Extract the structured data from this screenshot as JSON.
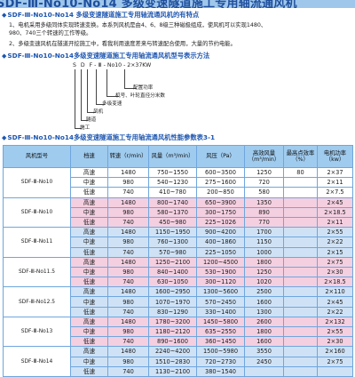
{
  "banner": "SDF-Ⅲ-No10-No14 多级变速隧道施工专用轴流通风机",
  "features": {
    "title": "SDF-Ⅲ-No10-No14 多级变速隧道施工专用轴流通风机的有特点",
    "p1_line1": "1、电机采用多级同体实现转速变换。本系列风机是由4、6、8级三种磁极组成，使风机可以实现1480、",
    "p1_line2": "980、740三个转速的工作等级。",
    "p2_line1": "2、多级变速风机在隧道开挖施工中，看我利用速度差来与转速配合使用，大量的节约电能。"
  },
  "model_code": {
    "title": "SDF-Ⅲ-No10-No14多级变速隧道施工专用轴流通风机型号表示方法",
    "parts": [
      "S",
      "D",
      "F",
      "-",
      "Ⅲ",
      "-",
      "No10",
      "-",
      "2×37KW"
    ],
    "labels": [
      "配置功率",
      "机号、叶轮直径分米数",
      "多级变速",
      "风机",
      "隧道",
      "施工"
    ]
  },
  "table": {
    "title": "SDF-Ⅲ-No10-No14多级变速隧道施工专用轴流通风机性能参数表3-1",
    "headers": {
      "model": "风机型号",
      "gear": "档速",
      "speed": "转速（r/min）",
      "flow": "风量（m³/min）",
      "pressure": "风压（Pa）",
      "eff_flow": "高效风量（m³/min）",
      "max_eff": "最高点效率（%）",
      "power": "电机功率（kw）"
    },
    "groups": [
      {
        "model": "SDF-Ⅲ-No10",
        "tone": "w",
        "rows": [
          [
            "高速",
            "1480",
            "750~1550",
            "600~3500",
            "1250",
            "80",
            "2×37"
          ],
          [
            "中速",
            "980",
            "540~1230",
            "275~1600",
            "720",
            "",
            "2×11"
          ],
          [
            "低速",
            "740",
            "410~780",
            "200~850",
            "580",
            "",
            "2×7.5"
          ]
        ]
      },
      {
        "model": "SDF-Ⅲ-No10",
        "tone": "p",
        "rows": [
          [
            "高速",
            "1480",
            "800~1740",
            "650~3900",
            "1350",
            "",
            "2×45"
          ],
          [
            "中速",
            "980",
            "580~1370",
            "300~1750",
            "890",
            "",
            "2×18.5"
          ],
          [
            "低速",
            "740",
            "450~980",
            "225~1026",
            "770",
            "",
            "2×11"
          ]
        ]
      },
      {
        "model": "SDF-Ⅲ-No11",
        "tone": "b",
        "rows": [
          [
            "高速",
            "1480",
            "1150~1950",
            "900~4200",
            "1700",
            "",
            "2×55"
          ],
          [
            "中速",
            "980",
            "760~1300",
            "400~1860",
            "1150",
            "",
            "2×22"
          ],
          [
            "低速",
            "740",
            "570~980",
            "225~1050",
            "1000",
            "",
            "2×15"
          ]
        ]
      },
      {
        "model": "SDF-Ⅲ-No11.5",
        "tone": "p",
        "rows": [
          [
            "高速",
            "1480",
            "1250~2100",
            "1200~4500",
            "1800",
            "",
            "2×75"
          ],
          [
            "中速",
            "980",
            "840~1400",
            "530~1900",
            "1250",
            "",
            "2×30"
          ],
          [
            "低速",
            "740",
            "630~1050",
            "300~1120",
            "1020",
            "",
            "2×18.5"
          ]
        ]
      },
      {
        "model": "SDF-Ⅲ-No12.5",
        "tone": "b",
        "rows": [
          [
            "高速",
            "1480",
            "1600~2950",
            "1300~5600",
            "2500",
            "",
            "2×110"
          ],
          [
            "中速",
            "980",
            "1070~1970",
            "570~2450",
            "1600",
            "",
            "2×45"
          ],
          [
            "低速",
            "740",
            "830~1290",
            "330~1400",
            "1300",
            "",
            "2×22"
          ]
        ]
      },
      {
        "model": "SDF-Ⅲ-No13",
        "tone": "p",
        "rows": [
          [
            "高速",
            "1480",
            "1780~3200",
            "1450~5800",
            "2600",
            "",
            "2×132"
          ],
          [
            "中速",
            "980",
            "1180~2120",
            "635~2550",
            "1800",
            "",
            "2×55"
          ],
          [
            "低速",
            "740",
            "890~1600",
            "360~1450",
            "1600",
            "",
            "2×30"
          ]
        ]
      },
      {
        "model": "SDF-Ⅲ-No14",
        "tone": "b",
        "rows": [
          [
            "高速",
            "1480",
            "2240~4200",
            "1500~5980",
            "3550",
            "",
            "2×160"
          ],
          [
            "中速",
            "980",
            "1510~2830",
            "720~2730",
            "2450",
            "",
            "2×75"
          ],
          [
            "低速",
            "740",
            "1130~2100",
            "380~1540",
            "",
            "",
            ""
          ]
        ]
      }
    ]
  }
}
